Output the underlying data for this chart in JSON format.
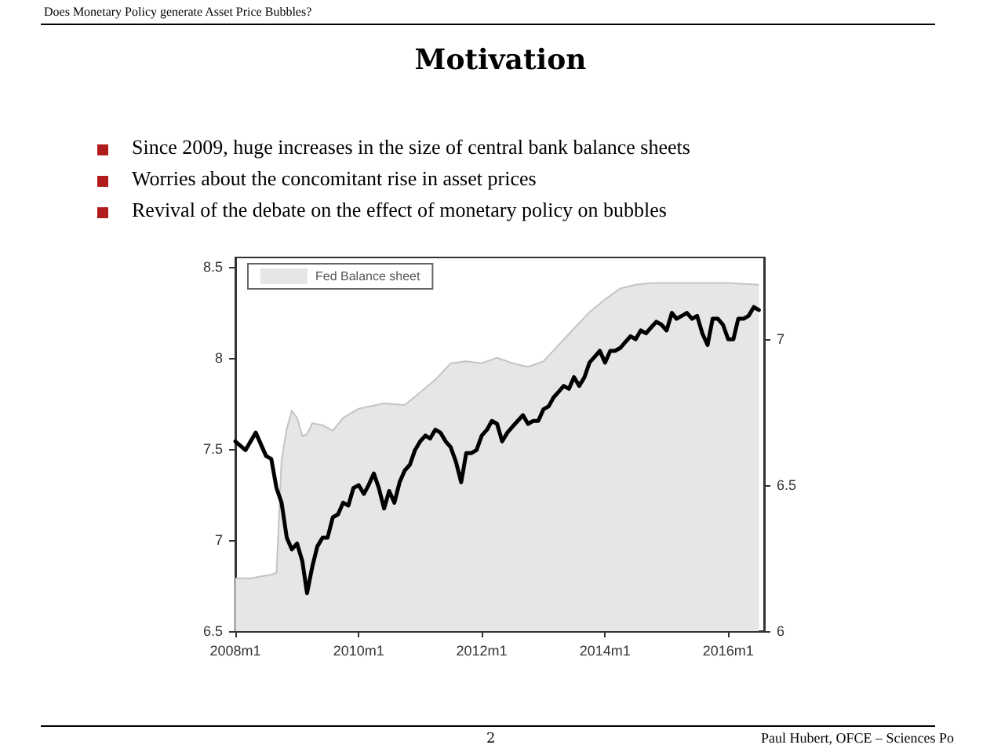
{
  "chart_data": {
    "type": "area",
    "title": "Motivation",
    "annotations": [
      "Does Monetary Policy generate Asset Price Bubbles?",
      "Since 2009, huge increases in the size of central bank balance sheets",
      "Worries about the concomitant rise in asset prices",
      "Revival of the debate on the effect of monetary policy on bubbles",
      "2",
      "Paul Hubert, OFCE – Sciences Po"
    ],
    "series": [
      {
        "name": "Fed Balance sheet",
        "type": "area",
        "color": "#e6e6e6",
        "x": [
          "2008-01",
          "2008-04",
          "2008-08",
          "2008-09",
          "2008-10",
          "2008-11",
          "2008-12",
          "2009-01",
          "2009-02",
          "2009-03",
          "2009-04",
          "2009-06",
          "2009-08",
          "2009-10",
          "2010-01",
          "2010-06",
          "2010-10",
          "2011-01",
          "2011-04",
          "2011-07",
          "2011-10",
          "2012-01",
          "2012-04",
          "2012-07",
          "2012-10",
          "2013-01",
          "2013-04",
          "2013-07",
          "2013-10",
          "2014-01",
          "2014-04",
          "2014-07",
          "2014-10",
          "2015-06",
          "2016-01",
          "2016-07"
        ],
        "values": [
          6.79,
          6.79,
          6.81,
          6.82,
          7.44,
          7.61,
          7.71,
          7.67,
          7.57,
          7.58,
          7.64,
          7.63,
          7.6,
          7.67,
          7.72,
          7.75,
          7.74,
          7.81,
          7.88,
          7.97,
          7.98,
          7.97,
          8.0,
          7.97,
          7.95,
          7.98,
          8.07,
          8.16,
          8.25,
          8.32,
          8.38,
          8.4,
          8.41,
          8.41,
          8.41,
          8.4
        ]
      },
      {
        "type": "line",
        "axis": "y2",
        "color": "#000000",
        "x": [
          "2008-01",
          "2008-03",
          "2008-05",
          "2008-07",
          "2008-08",
          "2008-09",
          "2008-10",
          "2008-11",
          "2008-12",
          "2009-01",
          "2009-02",
          "2009-03",
          "2009-04",
          "2009-05",
          "2009-06",
          "2009-07",
          "2009-08",
          "2009-09",
          "2009-10",
          "2009-11",
          "2009-12",
          "2010-01",
          "2010-02",
          "2010-03",
          "2010-04",
          "2010-05",
          "2010-06",
          "2010-07",
          "2010-08",
          "2010-09",
          "2010-10",
          "2010-11",
          "2010-12",
          "2011-01",
          "2011-02",
          "2011-03",
          "2011-04",
          "2011-05",
          "2011-06",
          "2011-07",
          "2011-08",
          "2011-09",
          "2011-10",
          "2011-11",
          "2011-12",
          "2012-01",
          "2012-02",
          "2012-03",
          "2012-04",
          "2012-05",
          "2012-06",
          "2012-07",
          "2012-08",
          "2012-09",
          "2012-10",
          "2012-11",
          "2012-12",
          "2013-01",
          "2013-02",
          "2013-03",
          "2013-04",
          "2013-05",
          "2013-06",
          "2013-07",
          "2013-08",
          "2013-09",
          "2013-10",
          "2013-11",
          "2013-12",
          "2014-01",
          "2014-02",
          "2014-03",
          "2014-04",
          "2014-05",
          "2014-06",
          "2014-07",
          "2014-08",
          "2014-09",
          "2014-10",
          "2014-11",
          "2014-12",
          "2015-01",
          "2015-02",
          "2015-03",
          "2015-04",
          "2015-05",
          "2015-06",
          "2015-07",
          "2015-08",
          "2015-09",
          "2015-10",
          "2015-11",
          "2015-12",
          "2016-01",
          "2016-02",
          "2016-03",
          "2016-04",
          "2016-05",
          "2016-06",
          "2016-07"
        ],
        "values": [
          6.65,
          6.62,
          6.68,
          6.6,
          6.59,
          6.49,
          6.44,
          6.32,
          6.28,
          6.3,
          6.24,
          6.13,
          6.22,
          6.29,
          6.32,
          6.32,
          6.39,
          6.4,
          6.44,
          6.43,
          6.49,
          6.5,
          6.47,
          6.5,
          6.54,
          6.49,
          6.42,
          6.48,
          6.44,
          6.51,
          6.55,
          6.57,
          6.62,
          6.65,
          6.67,
          6.66,
          6.69,
          6.68,
          6.65,
          6.63,
          6.58,
          6.51,
          6.61,
          6.61,
          6.62,
          6.67,
          6.69,
          6.72,
          6.71,
          6.65,
          6.68,
          6.7,
          6.72,
          6.74,
          6.71,
          6.72,
          6.72,
          6.76,
          6.77,
          6.8,
          6.82,
          6.84,
          6.83,
          6.87,
          6.84,
          6.87,
          6.92,
          6.94,
          6.96,
          6.92,
          6.96,
          6.96,
          6.97,
          6.99,
          7.01,
          7.0,
          7.03,
          7.02,
          7.04,
          7.06,
          7.05,
          7.03,
          7.09,
          7.07,
          7.08,
          7.09,
          7.07,
          7.08,
          7.02,
          6.98,
          7.07,
          7.07,
          7.05,
          7.0,
          7.0,
          7.07,
          7.07,
          7.08,
          7.11,
          7.1
        ]
      }
    ],
    "xlim": [
      "2008-01",
      "2016-08"
    ],
    "xticks": [
      {
        "value": "2008-01",
        "label": "2008m1"
      },
      {
        "value": "2010-01",
        "label": "2010m1"
      },
      {
        "value": "2012-01",
        "label": "2012m1"
      },
      {
        "value": "2014-01",
        "label": "2014m1"
      },
      {
        "value": "2016-01",
        "label": "2016m1"
      }
    ],
    "ylim": [
      6.5,
      8.55
    ],
    "yticks": [
      6.5,
      7,
      7.5,
      8,
      8.5
    ],
    "y2lim": [
      6,
      7.28
    ],
    "y2ticks": [
      6,
      6.5,
      7
    ],
    "grid": false,
    "legend": "top left",
    "marker": "none",
    "line_style": "solid"
  }
}
